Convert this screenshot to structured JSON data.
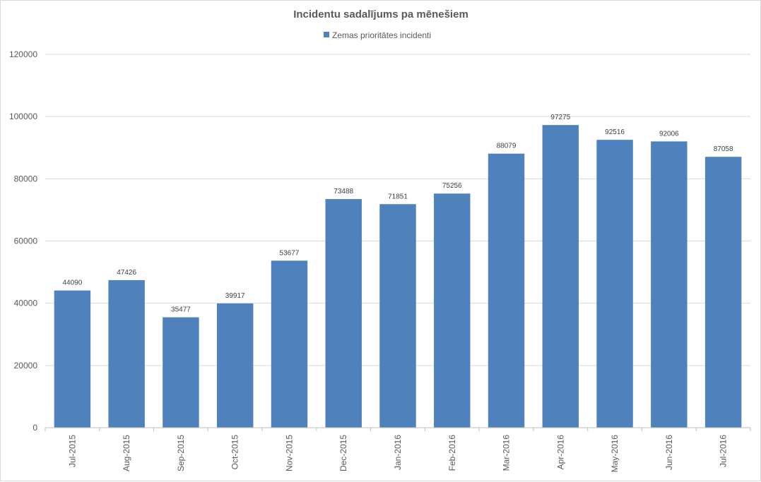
{
  "chart_data": {
    "type": "bar",
    "title": "Incidentu sadalījums pa mēnešiem",
    "xlabel": "",
    "ylabel": "",
    "ylim": [
      0,
      120000
    ],
    "yticks": [
      0,
      20000,
      40000,
      60000,
      80000,
      100000,
      120000
    ],
    "grid": true,
    "legend_position": "top-center",
    "categories": [
      "Jul-2015",
      "Aug-2015",
      "Sep-2015",
      "Oct-2015",
      "Nov-2015",
      "Dec-2015",
      "Jan-2016",
      "Feb-2016",
      "Mar-2016",
      "Apr-2016",
      "May-2016",
      "Jun-2016",
      "Jul-2016"
    ],
    "series": [
      {
        "name": "Zemas prioritātes incidenti",
        "color": "#4F81BD",
        "values": [
          44090,
          47426,
          35477,
          39917,
          53677,
          73488,
          71851,
          75256,
          88079,
          97275,
          92516,
          92006,
          87058
        ]
      }
    ]
  }
}
